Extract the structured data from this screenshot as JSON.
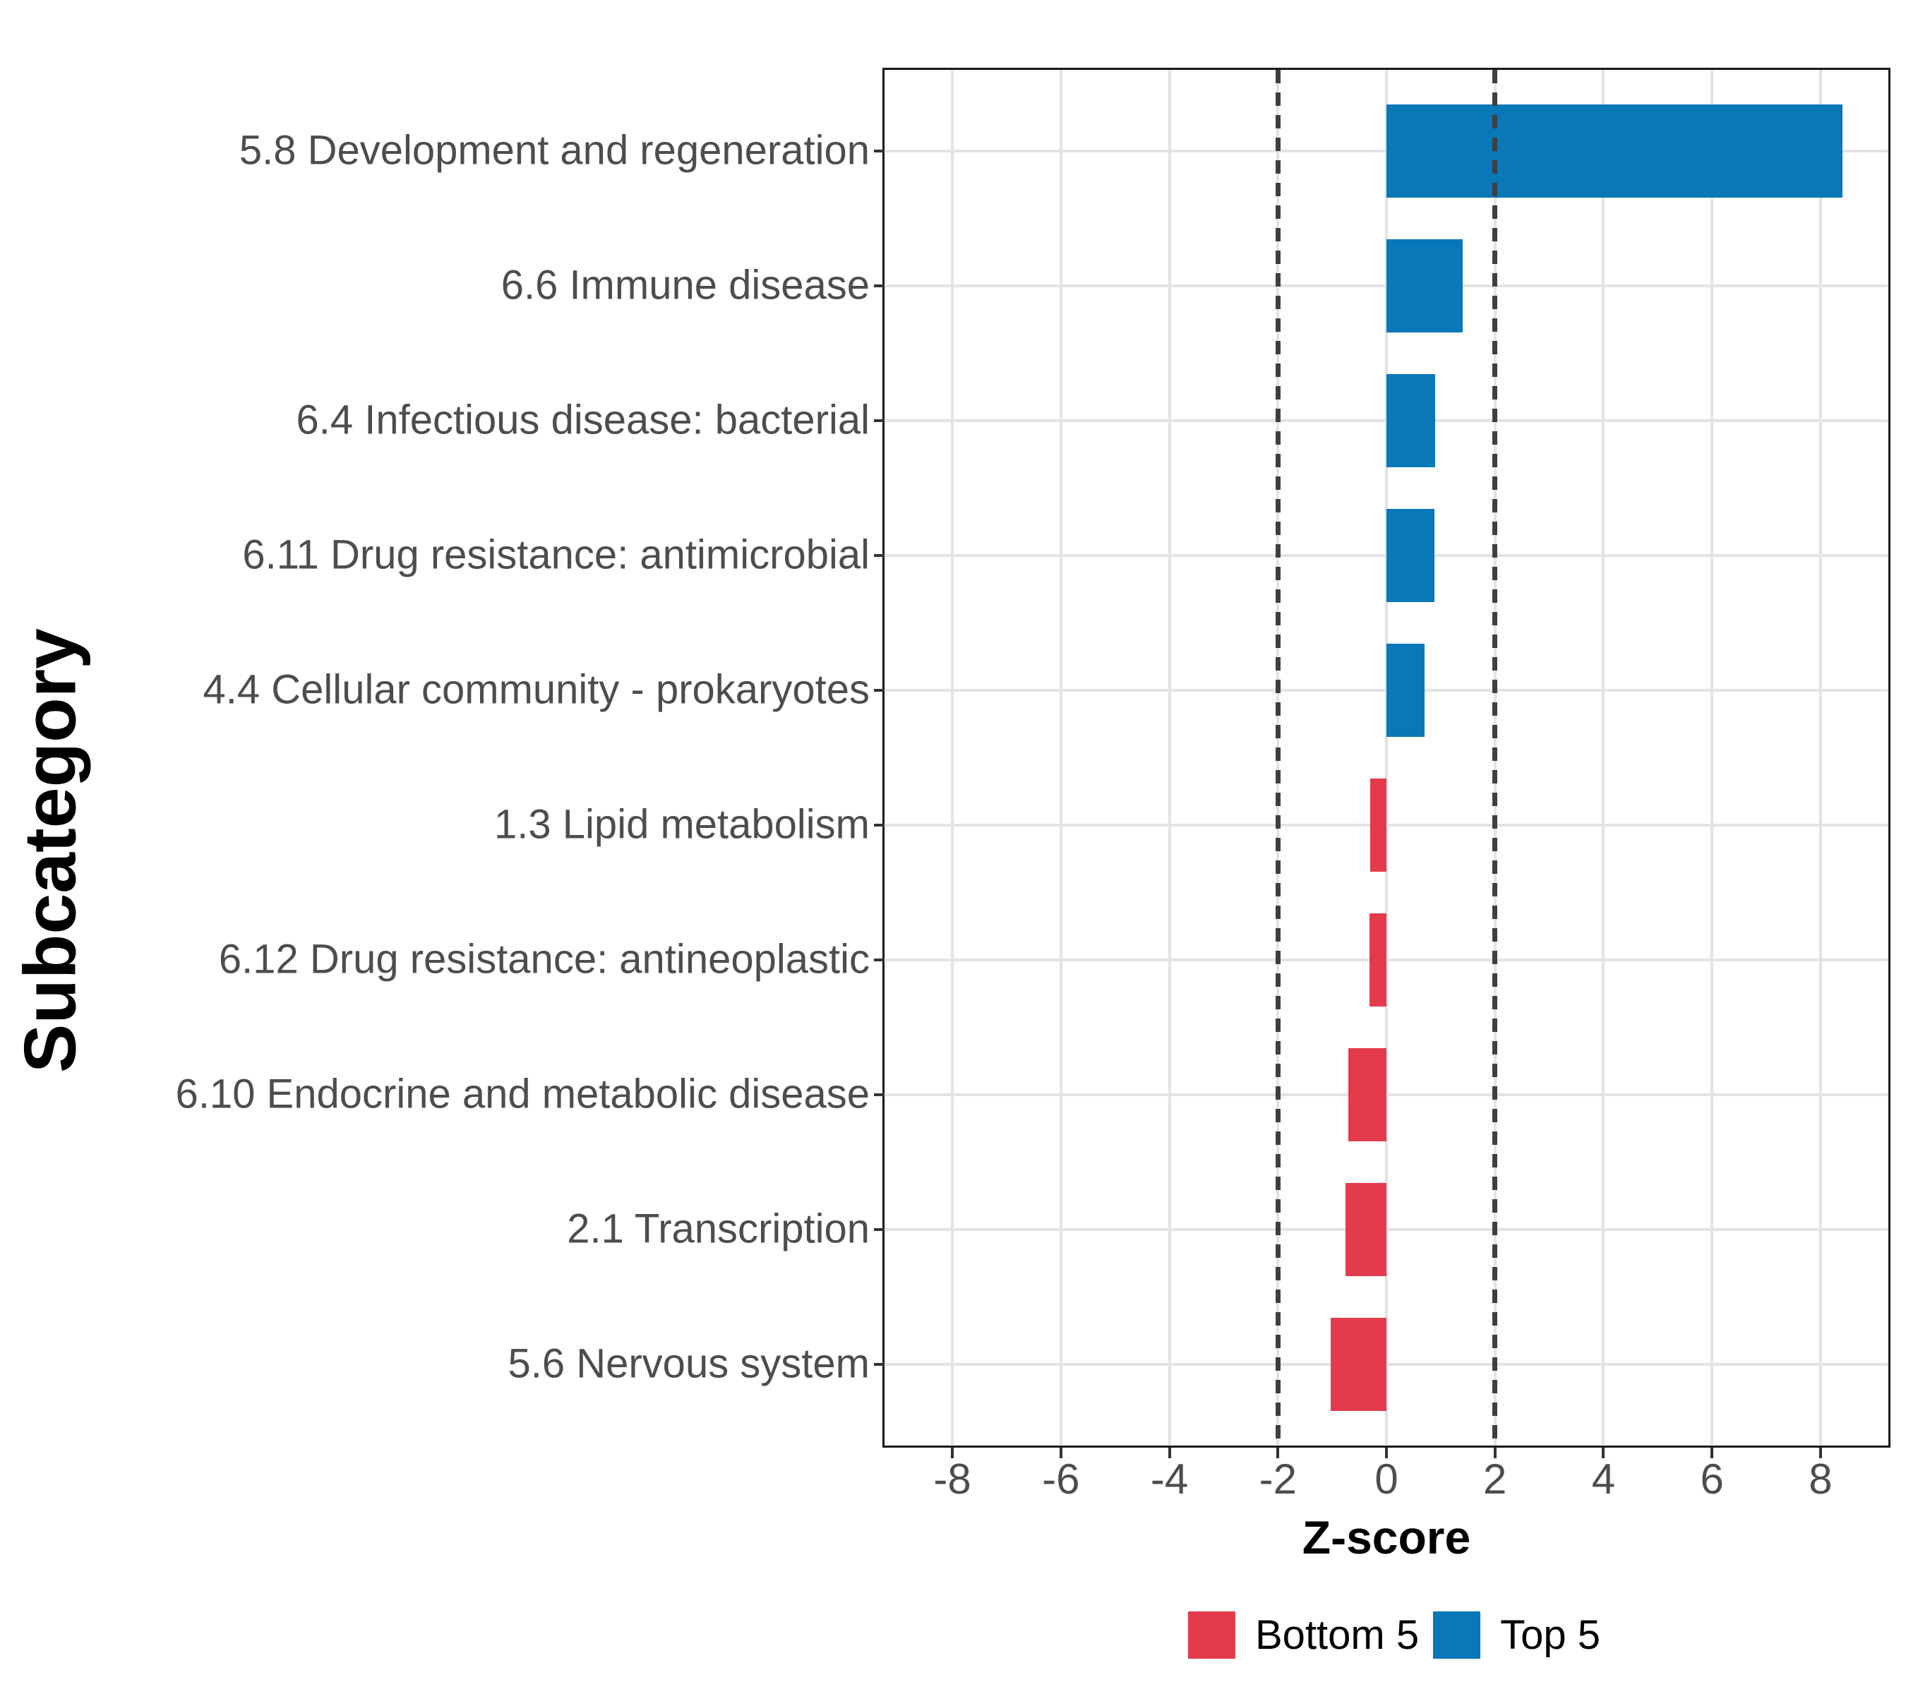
{
  "figure": {
    "background": "#ffffff",
    "panel_border_color": "#1a1a1a",
    "gridline_color": "#e3e3e3",
    "axis_text_color": "#4d4d4d",
    "reference_line_color": "#3f3f3f"
  },
  "chart_data": {
    "type": "bar",
    "orientation": "horizontal",
    "title": "",
    "xlabel": "Z-score",
    "ylabel": "Subcategory",
    "categories": [
      "5.8 Development and regeneration",
      "6.6 Immune disease",
      "6.4 Infectious disease: bacterial",
      "6.11 Drug resistance: antimicrobial",
      "4.4 Cellular community - prokaryotes",
      "1.3 Lipid metabolism",
      "6.12 Drug resistance: antineoplastic",
      "6.10 Endocrine and metabolic disease",
      "2.1 Transcription",
      "5.6 Nervous system"
    ],
    "values": [
      8.4,
      1.4,
      0.9,
      0.88,
      0.7,
      -0.3,
      -0.31,
      -0.7,
      -0.76,
      -1.03
    ],
    "groups": [
      "Top 5",
      "Top 5",
      "Top 5",
      "Top 5",
      "Top 5",
      "Bottom 5",
      "Bottom 5",
      "Bottom 5",
      "Bottom 5",
      "Bottom 5"
    ],
    "colors": {
      "Top 5": "#0878b9",
      "Bottom 5": "#e33b4c"
    },
    "x_ticks": [
      -8,
      -6,
      -4,
      -2,
      0,
      2,
      4,
      6,
      8
    ],
    "x_tick_labels": [
      "-8",
      "-6",
      "-4",
      "-2",
      "0",
      "2",
      "4",
      "6",
      "8"
    ],
    "xlim": [
      -9.25,
      9.25
    ],
    "reference_lines": [
      -2,
      2
    ],
    "bar_width_fraction": 0.69,
    "grid": true,
    "legend_position": "bottom"
  },
  "legend": {
    "items": [
      {
        "label": "Bottom 5",
        "color": "#e33b4c"
      },
      {
        "label": "Top 5",
        "color": "#0878b9"
      }
    ]
  }
}
